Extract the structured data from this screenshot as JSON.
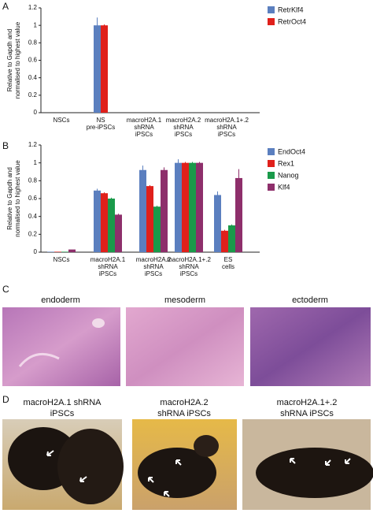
{
  "panels": {
    "labels": [
      "A",
      "B",
      "C",
      "D"
    ]
  },
  "chart_data": [
    {
      "type": "bar",
      "ylabel": [
        "Relative to Gapdh and",
        "normalised to highest value"
      ],
      "categories": [
        [
          "NSCs"
        ],
        [
          "NS",
          "pre-iPSCs"
        ],
        [
          "macroH2A.1",
          "shRNA",
          "iPSCs"
        ],
        [
          "macroH2A.2",
          "shRNA",
          "iPSCs"
        ],
        [
          "macroH2A.1+.2",
          "shRNA",
          "iPSCs"
        ]
      ],
      "series": [
        {
          "name": "RetrKlf4",
          "color": "#5b7fbf",
          "values": [
            0,
            1,
            0,
            0,
            0
          ],
          "errors": [
            0,
            0.09,
            0,
            0,
            0
          ]
        },
        {
          "name": "RetrOct4",
          "color": "#e0201b",
          "values": [
            0,
            1,
            0,
            0,
            0
          ],
          "errors": [
            0,
            0.01,
            0,
            0,
            0
          ]
        }
      ],
      "ylim": [
        0,
        1.2
      ],
      "yticks": [
        0,
        0.2,
        0.4,
        0.6,
        0.8,
        1,
        1.2
      ],
      "legend": "outside-right"
    },
    {
      "type": "bar",
      "ylabel": [
        "Relative to Gapdh and",
        "normalised to highest value"
      ],
      "categories": [
        [
          "NSCs"
        ],
        [
          "macroH2A.1",
          "shRNA",
          "iPSCs"
        ],
        [
          "macroH2A.2",
          "shRNA",
          "iPSCs"
        ],
        [
          "macroH2A.1+.2",
          "shRNA",
          "iPSCs"
        ],
        [
          "ES",
          "cells"
        ]
      ],
      "series": [
        {
          "name": "EndOct4",
          "color": "#5b7fbf",
          "values": [
            0.005,
            0.69,
            0.92,
            1,
            0.64
          ],
          "errors": [
            0,
            0.02,
            0.05,
            0.04,
            0.04
          ]
        },
        {
          "name": "Rex1",
          "color": "#e0201b",
          "values": [
            0.005,
            0.66,
            0.74,
            1,
            0.24
          ],
          "errors": [
            0,
            0.01,
            0.01,
            0.01,
            0.01
          ]
        },
        {
          "name": "Nanog",
          "color": "#1a9a4a",
          "values": [
            0.005,
            0.6,
            0.51,
            1,
            0.3
          ],
          "errors": [
            0,
            0.01,
            0.01,
            0.01,
            0.01
          ]
        },
        {
          "name": "Klf4",
          "color": "#8e2f6b",
          "values": [
            0.03,
            0.42,
            0.92,
            1,
            0.83
          ],
          "errors": [
            0,
            0.01,
            0.03,
            0.01,
            0.1
          ]
        }
      ],
      "ylim": [
        0,
        1.2
      ],
      "yticks": [
        0,
        0.2,
        0.4,
        0.6,
        0.8,
        1,
        1.2
      ],
      "legend": "outside-right"
    }
  ],
  "histology": {
    "labels": [
      "endoderm",
      "mesoderm",
      "ectoderm"
    ]
  },
  "mice": {
    "captions": [
      [
        "macroH2A.1 shRNA",
        "iPSCs"
      ],
      [
        "macroH2A.2",
        "shRNA iPSCs"
      ],
      [
        "macroH2A.1+.2",
        "shRNA iPSCs"
      ]
    ]
  }
}
